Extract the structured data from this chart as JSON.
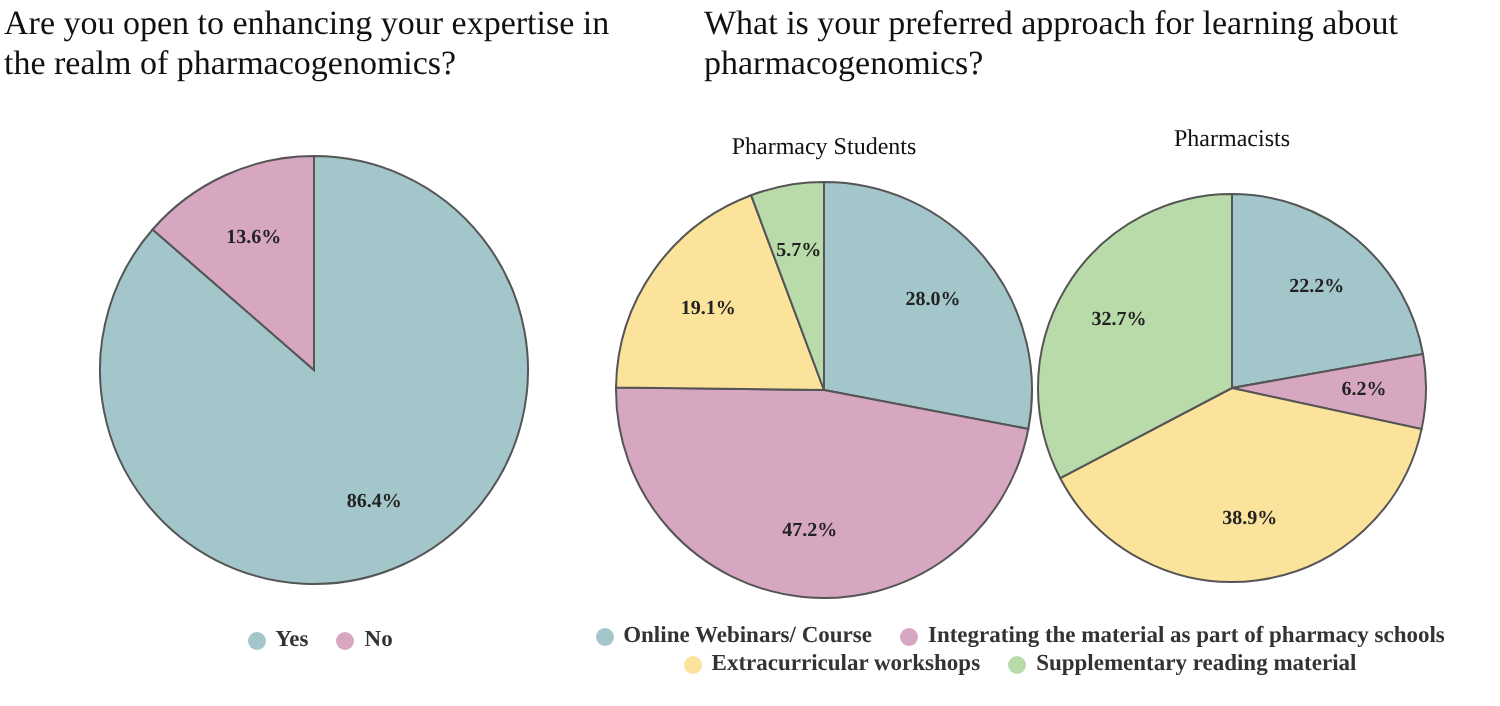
{
  "chart_data": [
    {
      "type": "pie",
      "title": "Are you open to enhancing your expertise in the realm of pharmacogenomics?",
      "categories": [
        "Yes",
        "No"
      ],
      "values": [
        86.4,
        13.6
      ],
      "value_labels": [
        "86.4%",
        "13.6%"
      ],
      "colors": [
        "#a3c6cb",
        "#d7a6c1"
      ],
      "legend": "bottom"
    },
    {
      "type": "pie",
      "title": "What is your preferred approach for learning about pharmacogenomics?",
      "categories": [
        "Online Webinars/ Course",
        "Integrating the material as part of pharmacy schools",
        "Extracurricular workshops",
        "Supplementary reading material"
      ],
      "colors": [
        "#a3c6cb",
        "#d7a6c1",
        "#fbe39b",
        "#b9dba9"
      ],
      "legend": "bottom",
      "series": [
        {
          "name": "Pharmacy Students",
          "values": [
            28.0,
            47.2,
            19.1,
            5.7
          ],
          "value_labels": [
            "28.0%",
            "47.2%",
            "19.1%",
            "5.7%"
          ]
        },
        {
          "name": "Pharmacists",
          "values": [
            22.2,
            6.2,
            38.9,
            32.7
          ],
          "value_labels": [
            "22.2%",
            "6.2%",
            "38.9%",
            "32.7%"
          ]
        }
      ]
    }
  ]
}
